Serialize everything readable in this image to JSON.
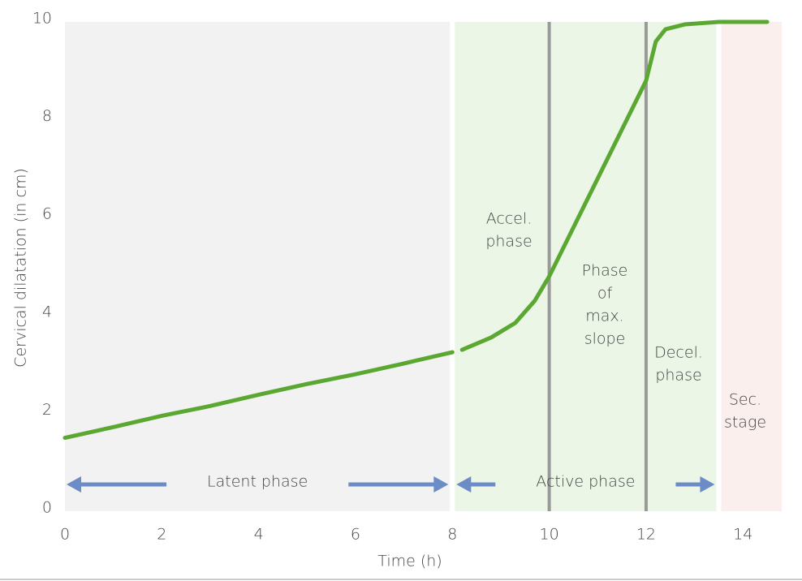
{
  "chart_data": {
    "type": "line",
    "x_label": "Time (h)",
    "y_label": "Cervical dilatation (in cm)",
    "xlim": [
      0,
      14.8
    ],
    "ylim": [
      0,
      10
    ],
    "xticks": [
      0,
      2,
      4,
      6,
      8,
      10,
      12,
      14
    ],
    "yticks": [
      0,
      2,
      4,
      6,
      8,
      10
    ],
    "x": [
      0,
      1,
      2,
      3,
      4,
      5,
      6,
      7,
      8,
      8.1,
      8.2,
      8.8,
      9.3,
      9.7,
      10,
      11,
      12,
      12.2,
      12.4,
      12.8,
      13.5,
      14.5
    ],
    "values": [
      1.5,
      1.72,
      1.95,
      2.15,
      2.38,
      2.6,
      2.8,
      3.02,
      3.25,
      null,
      3.3,
      3.55,
      3.85,
      4.3,
      4.8,
      6.8,
      8.8,
      9.6,
      9.85,
      9.95,
      10,
      10
    ],
    "color": "#5aa832",
    "regions": [
      {
        "start": 0,
        "end": 8,
        "color": "#f2f2f2",
        "label": "Latent phase"
      },
      {
        "start": 8,
        "end": 13.5,
        "color": "#ebf6e7",
        "label": "Active phase"
      },
      {
        "start": 13.5,
        "end": 14.8,
        "color": "#fbefee"
      }
    ],
    "arrow_color": "#6b8cc7",
    "boundaries": [
      10,
      12
    ],
    "boundary_color": "#999999",
    "annotations": [
      [
        "Accel.",
        "phase"
      ],
      [
        "Phase",
        "of",
        "max.",
        "slope"
      ],
      [
        "Decel.",
        "phase"
      ],
      [
        "Sec.",
        "stage"
      ]
    ]
  }
}
